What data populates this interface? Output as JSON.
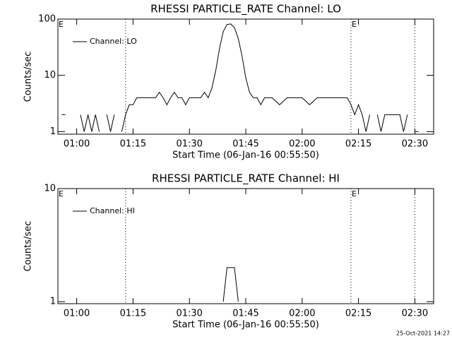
{
  "chart_data": [
    {
      "type": "line",
      "title": "RHESSI PARTICLE_RATE Channel: LO",
      "xlabel": "Start Time (06-Jan-16 00:55:50)",
      "ylabel": "Counts/sec",
      "log_y": true,
      "legend": "upper left",
      "xlim": [
        "00:55",
        "02:35"
      ],
      "xticks": [
        "01:00",
        "01:15",
        "01:30",
        "01:45",
        "02:00",
        "02:15",
        "02:30"
      ],
      "ylim": [
        0.9,
        100
      ],
      "yticks": [
        1,
        10,
        100
      ],
      "markers": [
        "01:13",
        "02:13",
        "02:30"
      ],
      "flags": [
        {
          "x": "00:55",
          "label": "E"
        },
        {
          "x": "02:13",
          "label": "E"
        }
      ],
      "x": [
        "00:56",
        "00:57",
        "00:58",
        "00:59",
        "01:00",
        "01:01",
        "01:02",
        "01:03",
        "01:04",
        "01:05",
        "01:06",
        "01:07",
        "01:08",
        "01:09",
        "01:10",
        "01:11",
        "01:12",
        "01:13",
        "01:14",
        "01:15",
        "01:16",
        "01:17",
        "01:18",
        "01:19",
        "01:20",
        "01:21",
        "01:22",
        "01:23",
        "01:24",
        "01:25",
        "01:26",
        "01:27",
        "01:28",
        "01:29",
        "01:30",
        "01:31",
        "01:32",
        "01:33",
        "01:34",
        "01:35",
        "01:36",
        "01:37",
        "01:38",
        "01:39",
        "01:40",
        "01:41",
        "01:42",
        "01:43",
        "01:44",
        "01:45",
        "01:46",
        "01:47",
        "01:48",
        "01:49",
        "01:50",
        "01:52",
        "01:54",
        "01:56",
        "01:58",
        "02:00",
        "02:02",
        "02:04",
        "02:06",
        "02:08",
        "02:10",
        "02:12",
        "02:13",
        "02:14",
        "02:15",
        "02:16",
        "02:17",
        "02:18",
        "02:19",
        "02:20",
        "02:21",
        "02:22",
        "02:23",
        "02:24",
        "02:25",
        "02:26",
        "02:27",
        "02:28",
        "02:29",
        "02:30",
        "02:31"
      ],
      "series": [
        {
          "name": "Channel: LO",
          "color": "#000000",
          "values": [
            2,
            2,
            null,
            null,
            null,
            2,
            1,
            2,
            1,
            2,
            1,
            null,
            2,
            1,
            2,
            null,
            1,
            2,
            3,
            3,
            4,
            4,
            4,
            4,
            4,
            4,
            5,
            4,
            3,
            4,
            5,
            4,
            4,
            3,
            4,
            4,
            4,
            4,
            5,
            4,
            6,
            12,
            30,
            60,
            80,
            82,
            70,
            45,
            22,
            9,
            5,
            4,
            4,
            3,
            4,
            4,
            3,
            4,
            4,
            4,
            3,
            4,
            4,
            4,
            4,
            4,
            3,
            2,
            3,
            2,
            1,
            2,
            null,
            2,
            1,
            2,
            2,
            2,
            2,
            2,
            1,
            2,
            null,
            1,
            1
          ]
        }
      ]
    },
    {
      "type": "line",
      "title": "RHESSI PARTICLE_RATE Channel: HI",
      "xlabel": "Start Time (06-Jan-16 00:55:50)",
      "ylabel": "Counts/sec",
      "log_y": true,
      "legend": "upper left",
      "xlim": [
        "00:55",
        "02:35"
      ],
      "xticks": [
        "01:00",
        "01:15",
        "01:30",
        "01:45",
        "02:00",
        "02:15",
        "02:30"
      ],
      "ylim": [
        0.96,
        10
      ],
      "yticks": [
        1,
        10
      ],
      "markers": [
        "01:13",
        "02:13",
        "02:30"
      ],
      "flags": [
        {
          "x": "00:55",
          "label": "E"
        },
        {
          "x": "02:13",
          "label": "E"
        }
      ],
      "x": [
        "01:39",
        "01:40",
        "01:41",
        "01:42",
        "01:43"
      ],
      "series": [
        {
          "name": "Channel: HI",
          "color": "#000000",
          "values": [
            1,
            2,
            2,
            2,
            1
          ]
        }
      ]
    }
  ],
  "footer": "25-Oct-2021 14:27"
}
